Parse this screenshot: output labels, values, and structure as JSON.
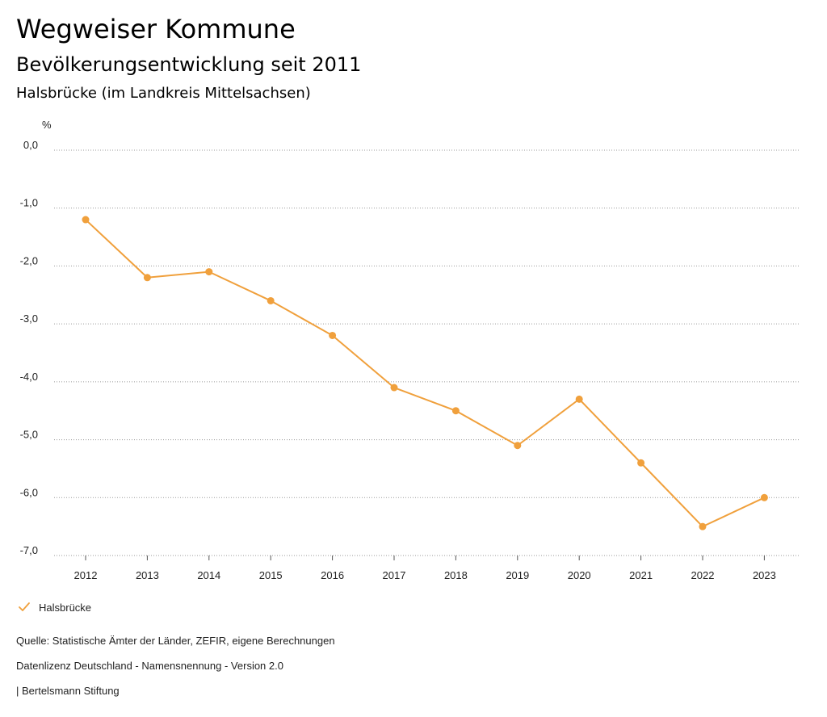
{
  "header": {
    "title": "Wegweiser Kommune",
    "subtitle": "Bevölkerungsentwicklung seit 2011",
    "region": "Halsbrücke (im Landkreis Mittelsachsen)"
  },
  "legend": {
    "icon": "checkmark-icon",
    "label": "Halsbrücke"
  },
  "footer": {
    "source": "Quelle: Statistische Ämter der Länder, ZEFIR, eigene Berechnungen",
    "license": "Datenlizenz Deutschland - Namensnennung - Version 2.0",
    "publisher": "| Bertelsmann Stiftung"
  },
  "colors": {
    "series": "#f0a03c",
    "grid": "#9a9a9a",
    "text": "#222222"
  },
  "chart_data": {
    "type": "line",
    "title": "",
    "xlabel": "",
    "ylabel": "%",
    "x": [
      "2012",
      "2013",
      "2014",
      "2015",
      "2016",
      "2017",
      "2018",
      "2019",
      "2020",
      "2021",
      "2022",
      "2023"
    ],
    "series": [
      {
        "name": "Halsbrücke",
        "values": [
          -1.2,
          -2.2,
          -2.1,
          -2.6,
          -3.2,
          -4.1,
          -4.5,
          -5.1,
          -4.3,
          -5.4,
          -6.5,
          -6.0
        ]
      }
    ],
    "yticks": [
      "0,0",
      "-1,0",
      "-2,0",
      "-3,0",
      "-4,0",
      "-5,0",
      "-6,0",
      "-7,0"
    ],
    "ylim": [
      -7,
      0
    ],
    "grid": true,
    "legend_position": "bottom-left"
  }
}
